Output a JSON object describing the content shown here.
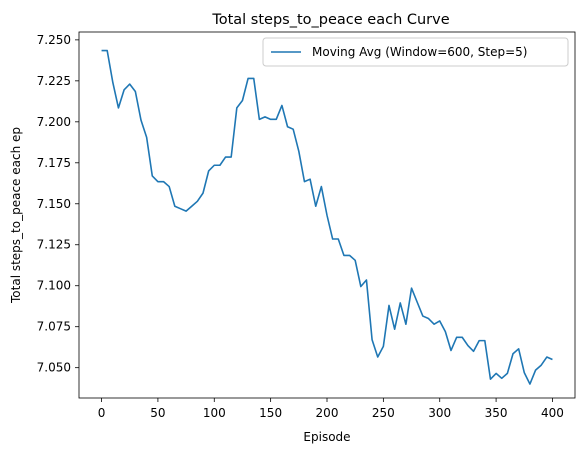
{
  "chart_data": {
    "type": "line",
    "title": "Total steps_to_peace each Curve",
    "xlabel": "Episode",
    "ylabel": "Total steps_to_peace each ep",
    "xlim": [
      -20,
      420
    ],
    "ylim": [
      7.0315,
      7.2548
    ],
    "xticks": [
      0,
      50,
      100,
      150,
      200,
      250,
      300,
      350,
      400
    ],
    "xtick_labels": [
      "0",
      "50",
      "100",
      "150",
      "200",
      "250",
      "300",
      "350",
      "400"
    ],
    "yticks": [
      7.05,
      7.075,
      7.1,
      7.125,
      7.15,
      7.175,
      7.2,
      7.225,
      7.25
    ],
    "ytick_labels": [
      "7.050",
      "7.075",
      "7.100",
      "7.125",
      "7.150",
      "7.175",
      "7.200",
      "7.225",
      "7.250"
    ],
    "grid": false,
    "legend_position": "top-right",
    "series": [
      {
        "name": "Moving Avg (Window=600, Step=5)",
        "color": "#1f77b4",
        "x": [
          0,
          5,
          10,
          15,
          20,
          25,
          30,
          35,
          40,
          45,
          50,
          55,
          60,
          65,
          70,
          75,
          80,
          85,
          90,
          95,
          100,
          105,
          110,
          115,
          120,
          125,
          130,
          135,
          140,
          145,
          150,
          155,
          160,
          165,
          170,
          175,
          180,
          185,
          190,
          195,
          200,
          205,
          210,
          215,
          220,
          225,
          230,
          235,
          240,
          245,
          250,
          255,
          260,
          265,
          270,
          275,
          280,
          285,
          290,
          295,
          300,
          305,
          310,
          315,
          320,
          325,
          330,
          335,
          340,
          345,
          350,
          355,
          360,
          365,
          370,
          375,
          380,
          385,
          390,
          395,
          400
        ],
        "y": [
          7.2435,
          7.2435,
          7.224,
          7.2085,
          7.2195,
          7.223,
          7.2185,
          7.201,
          7.1905,
          7.167,
          7.1635,
          7.1635,
          7.1605,
          7.1485,
          7.147,
          7.1455,
          7.1485,
          7.1515,
          7.1565,
          7.17,
          7.1735,
          7.1735,
          7.1785,
          7.1785,
          7.2085,
          7.213,
          7.2265,
          7.2265,
          7.2015,
          7.203,
          7.2015,
          7.2015,
          7.21,
          7.197,
          7.1955,
          7.182,
          7.1635,
          7.165,
          7.1485,
          7.1605,
          7.143,
          7.1285,
          7.1285,
          7.1185,
          7.1185,
          7.1155,
          7.0995,
          7.1035,
          7.067,
          7.0565,
          7.063,
          7.088,
          7.0735,
          7.0895,
          7.0765,
          7.0985,
          7.09,
          7.0815,
          7.08,
          7.0765,
          7.0785,
          7.072,
          7.0605,
          7.0685,
          7.0685,
          7.0635,
          7.06,
          7.0665,
          7.0665,
          7.043,
          7.0465,
          7.0435,
          7.0465,
          7.0585,
          7.0615,
          7.047,
          7.04,
          7.0485,
          7.0515,
          7.0565,
          7.055
        ]
      }
    ]
  }
}
